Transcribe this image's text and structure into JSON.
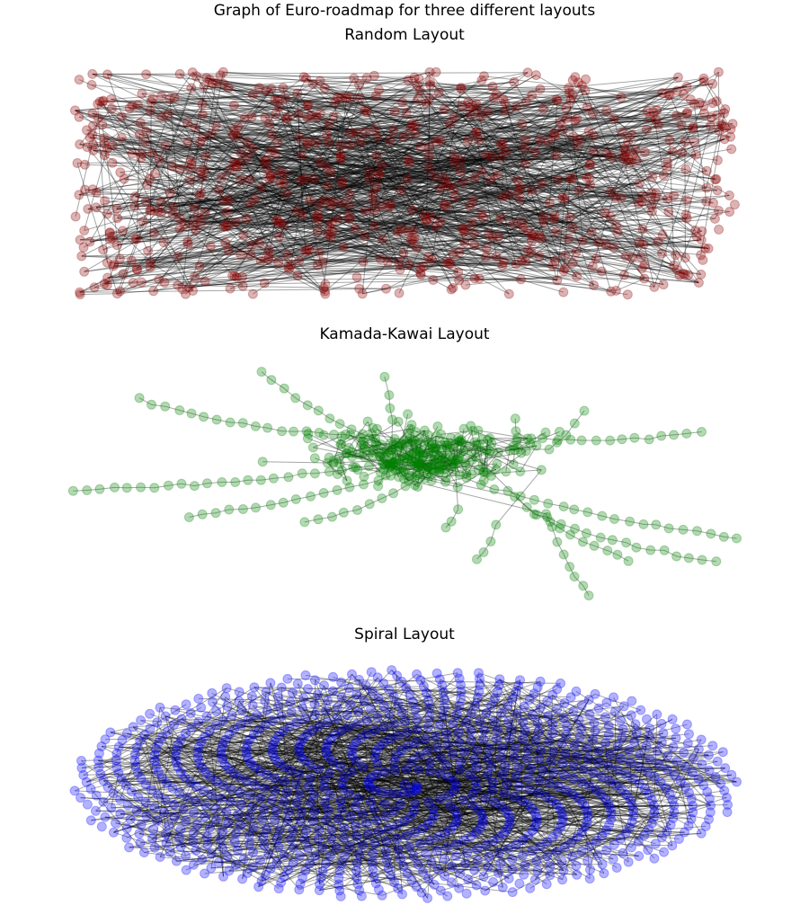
{
  "figure": {
    "suptitle": "Graph of Euro-roadmap for three different layouts"
  },
  "panels": [
    {
      "title": "Random Layout",
      "node_color": "#8b0000",
      "edge_color": "#000000",
      "layout": "random"
    },
    {
      "title": "Kamada-Kawai Layout",
      "node_color": "#008000",
      "edge_color": "#000000",
      "layout": "kamada-kawai"
    },
    {
      "title": "Spiral Layout",
      "node_color": "#0000ff",
      "edge_color": "#000000",
      "layout": "spiral"
    }
  ]
}
